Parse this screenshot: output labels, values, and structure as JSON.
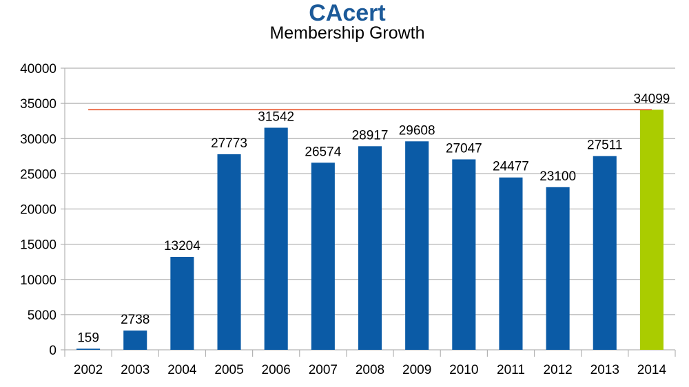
{
  "logo": {
    "text": "CAcert"
  },
  "chart_data": {
    "type": "bar",
    "title": "Membership Growth",
    "categories": [
      "2002",
      "2003",
      "2004",
      "2005",
      "2006",
      "2007",
      "2008",
      "2009",
      "2010",
      "2011",
      "2012",
      "2013",
      "2014"
    ],
    "values": [
      159,
      2738,
      13204,
      27773,
      31542,
      26574,
      28917,
      29608,
      27047,
      24477,
      23100,
      27511,
      34099
    ],
    "data_labels": [
      "159",
      "2738",
      "13204",
      "27773",
      "31542",
      "26574",
      "28917",
      "29608",
      "27047",
      "24477",
      "23100",
      "27511",
      "34099"
    ],
    "ylim": [
      0,
      40000
    ],
    "yticks": [
      0,
      5000,
      10000,
      15000,
      20000,
      25000,
      30000,
      35000,
      40000
    ],
    "ytick_labels": [
      "0",
      "5000",
      "10000",
      "15000",
      "20000",
      "25000",
      "30000",
      "35000",
      "40000"
    ],
    "reference_line": {
      "value": 34099,
      "color": "#e8532a"
    },
    "grid": true,
    "legend": "none",
    "colors": {
      "bar": "#0b5ba6",
      "highlight_bar": "#aacc00",
      "grid": "#b3b3b3"
    },
    "highlight_category": "2014"
  }
}
